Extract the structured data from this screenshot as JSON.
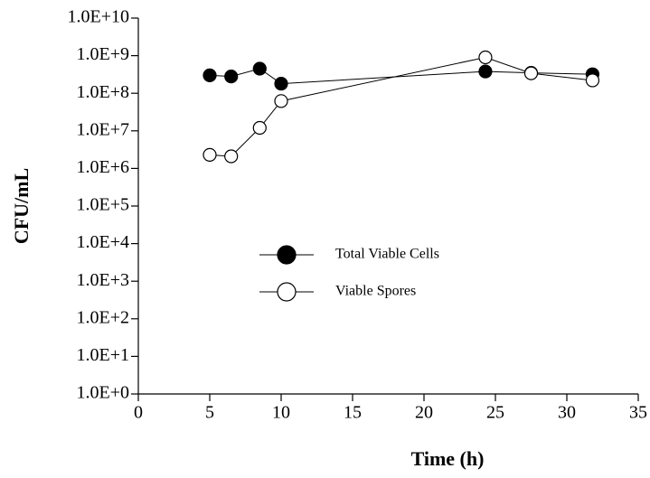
{
  "chart_data": {
    "type": "line",
    "ylabel": "CFU/mL",
    "xlabel": "Time (h)",
    "ylog": true,
    "grid": false,
    "legend": "center-left",
    "xlim": [
      0,
      35
    ],
    "xticks": [
      0,
      5,
      10,
      15,
      20,
      25,
      30,
      35
    ],
    "ylim": [
      1,
      10000000000
    ],
    "yticks": [
      {
        "value": 1,
        "label": "1.0E+0"
      },
      {
        "value": 10,
        "label": "1.0E+1"
      },
      {
        "value": 100,
        "label": "1.0E+2"
      },
      {
        "value": 1000,
        "label": "1.0E+3"
      },
      {
        "value": 10000,
        "label": "1.0E+4"
      },
      {
        "value": 100000,
        "label": "1.0E+5"
      },
      {
        "value": 1000000,
        "label": "1.0E+6"
      },
      {
        "value": 10000000,
        "label": "1.0E+7"
      },
      {
        "value": 100000000,
        "label": "1.0E+8"
      },
      {
        "value": 1000000000,
        "label": "1.0E+9"
      },
      {
        "value": 10000000000,
        "label": "1.0E+10"
      }
    ],
    "series": [
      {
        "name": "Total Viable Cells",
        "color": "#000000",
        "filled": true,
        "x": [
          5,
          6.5,
          8.5,
          10,
          24.3,
          27.5,
          31.8
        ],
        "values": [
          300000000,
          280000000,
          450000000,
          180000000,
          380000000,
          350000000,
          320000000
        ]
      },
      {
        "name": "Viable Spores",
        "color": "#000000",
        "filled": false,
        "x": [
          5,
          6.5,
          8.5,
          10,
          24.3,
          27.5,
          31.8
        ],
        "values": [
          2300000,
          2100000,
          12000000,
          62000000,
          900000000,
          340000000,
          220000000
        ]
      }
    ]
  }
}
